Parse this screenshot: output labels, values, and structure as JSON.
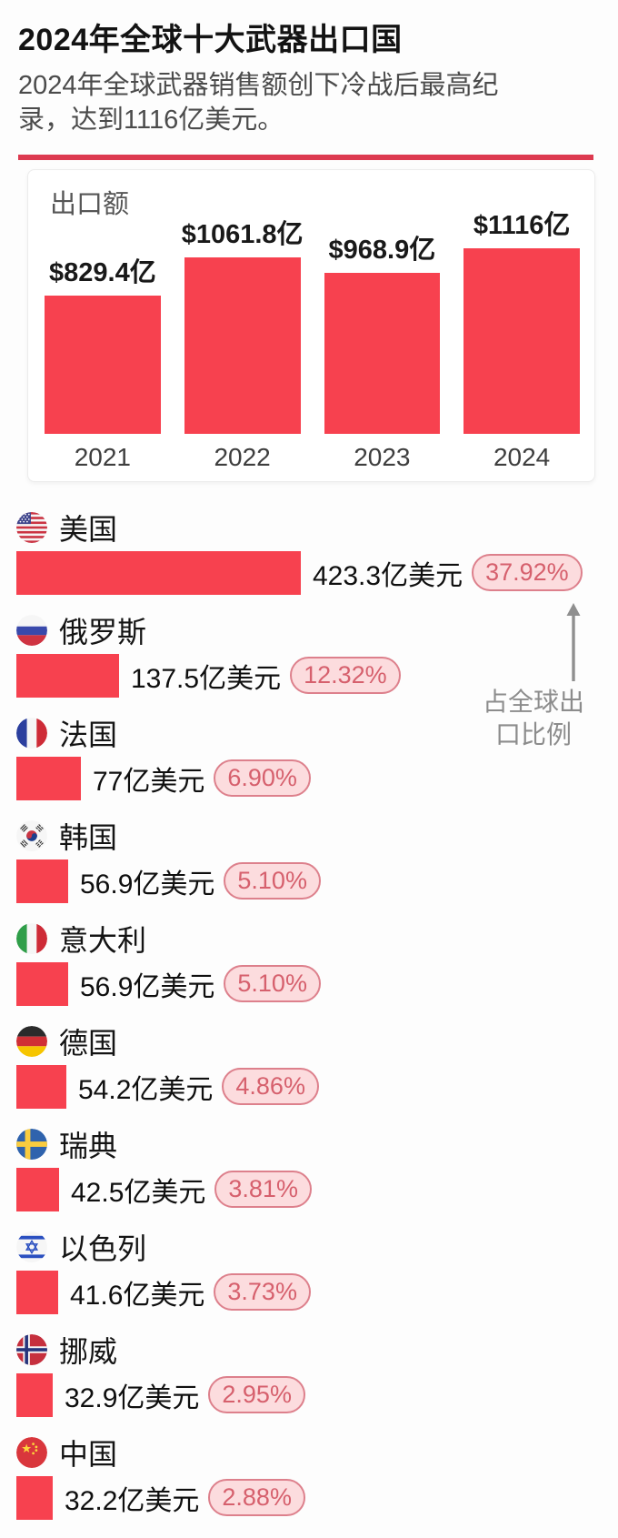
{
  "page": {
    "title": "2024年全球十大武器出口国",
    "subtitle": "2024年全球武器销售额创下冷战后最高纪录，达到1116亿美元。"
  },
  "colors": {
    "accent_red": "#f7414f",
    "divider_red": "#dd3a50",
    "badge_bg": "#fcdcde",
    "badge_border": "#dd808c",
    "badge_text": "#d6606d",
    "annotation_gray": "#8c8c8c"
  },
  "chart_data": [
    {
      "type": "bar",
      "title": "出口额",
      "categories": [
        "2021",
        "2022",
        "2023",
        "2024"
      ],
      "values": [
        829.4,
        1061.8,
        968.9,
        1116
      ],
      "value_labels": [
        "$829.4亿",
        "$1061.8亿",
        "$968.9亿",
        "$1116亿"
      ],
      "ylim": [
        0,
        1116
      ],
      "grid": false,
      "legend": false
    },
    {
      "type": "bar",
      "orientation": "horizontal",
      "annotation": "占全球出口比例",
      "rows": [
        {
          "country": "美国",
          "flag": "us",
          "value": 423.3,
          "value_label": "423.3亿美元",
          "share_pct": 37.92,
          "share_label": "37.92%"
        },
        {
          "country": "俄罗斯",
          "flag": "ru",
          "value": 137.5,
          "value_label": "137.5亿美元",
          "share_pct": 12.32,
          "share_label": "12.32%"
        },
        {
          "country": "法国",
          "flag": "fr",
          "value": 77,
          "value_label": "77亿美元",
          "share_pct": 6.9,
          "share_label": "6.90%"
        },
        {
          "country": "韩国",
          "flag": "kr",
          "value": 56.9,
          "value_label": "56.9亿美元",
          "share_pct": 5.1,
          "share_label": "5.10%"
        },
        {
          "country": "意大利",
          "flag": "it",
          "value": 56.9,
          "value_label": "56.9亿美元",
          "share_pct": 5.1,
          "share_label": "5.10%"
        },
        {
          "country": "德国",
          "flag": "de",
          "value": 54.2,
          "value_label": "54.2亿美元",
          "share_pct": 4.86,
          "share_label": "4.86%"
        },
        {
          "country": "瑞典",
          "flag": "se",
          "value": 42.5,
          "value_label": "42.5亿美元",
          "share_pct": 3.81,
          "share_label": "3.81%"
        },
        {
          "country": "以色列",
          "flag": "il",
          "value": 41.6,
          "value_label": "41.6亿美元",
          "share_pct": 3.73,
          "share_label": "3.73%"
        },
        {
          "country": "挪威",
          "flag": "no",
          "value": 32.9,
          "value_label": "32.9亿美元",
          "share_pct": 2.95,
          "share_label": "2.95%"
        },
        {
          "country": "中国",
          "flag": "cn",
          "value": 32.2,
          "value_label": "32.2亿美元",
          "share_pct": 2.88,
          "share_label": "2.88%"
        }
      ]
    }
  ]
}
